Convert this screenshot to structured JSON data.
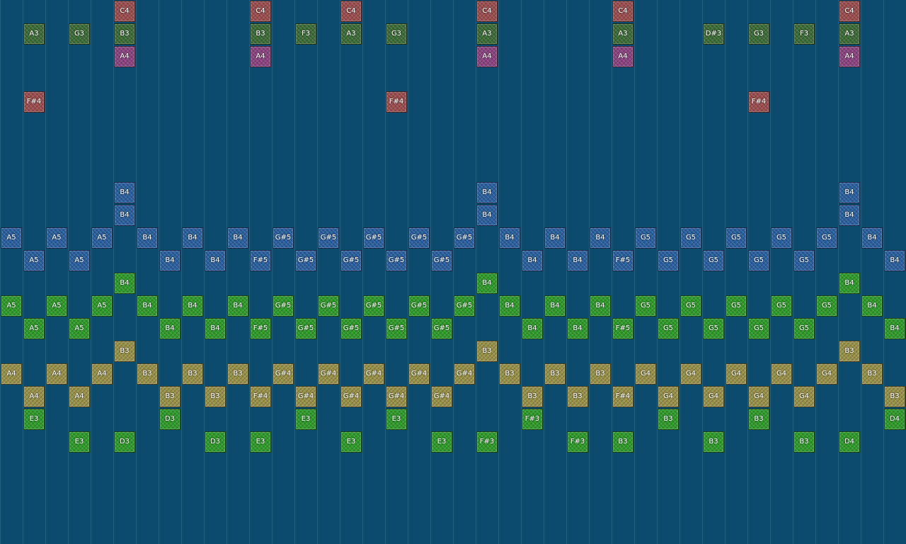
{
  "colors": {
    "red": "#9a4d4e",
    "dgreen": "#3d6b37",
    "purple": "#8a437f",
    "blue": "#2a5f9e",
    "green": "#2f9a2a",
    "olive": "#979048",
    "background": "#0c4a6e"
  },
  "notes": [
    {
      "label": "C4",
      "col": 5,
      "row": 0,
      "color": "red"
    },
    {
      "label": "C4",
      "col": 11,
      "row": 0,
      "color": "red"
    },
    {
      "label": "C4",
      "col": 15,
      "row": 0,
      "color": "red"
    },
    {
      "label": "C4",
      "col": 21,
      "row": 0,
      "color": "red"
    },
    {
      "label": "C4",
      "col": 27,
      "row": 0,
      "color": "red"
    },
    {
      "label": "C4",
      "col": 37,
      "row": 0,
      "color": "red"
    },
    {
      "label": "A3",
      "col": 1,
      "row": 1,
      "color": "dgreen"
    },
    {
      "label": "G3",
      "col": 3,
      "row": 1,
      "color": "dgreen"
    },
    {
      "label": "B3",
      "col": 5,
      "row": 1,
      "color": "dgreen"
    },
    {
      "label": "B3",
      "col": 11,
      "row": 1,
      "color": "dgreen"
    },
    {
      "label": "F3",
      "col": 13,
      "row": 1,
      "color": "dgreen"
    },
    {
      "label": "A3",
      "col": 15,
      "row": 1,
      "color": "dgreen"
    },
    {
      "label": "G3",
      "col": 17,
      "row": 1,
      "color": "dgreen"
    },
    {
      "label": "A3",
      "col": 21,
      "row": 1,
      "color": "dgreen"
    },
    {
      "label": "A3",
      "col": 27,
      "row": 1,
      "color": "dgreen"
    },
    {
      "label": "D#3",
      "col": 31,
      "row": 1,
      "color": "dgreen"
    },
    {
      "label": "G3",
      "col": 33,
      "row": 1,
      "color": "dgreen"
    },
    {
      "label": "F3",
      "col": 35,
      "row": 1,
      "color": "dgreen"
    },
    {
      "label": "A3",
      "col": 37,
      "row": 1,
      "color": "dgreen"
    },
    {
      "label": "A4",
      "col": 5,
      "row": 2,
      "color": "purple"
    },
    {
      "label": "A4",
      "col": 11,
      "row": 2,
      "color": "purple"
    },
    {
      "label": "A4",
      "col": 21,
      "row": 2,
      "color": "purple"
    },
    {
      "label": "A4",
      "col": 27,
      "row": 2,
      "color": "purple"
    },
    {
      "label": "A4",
      "col": 37,
      "row": 2,
      "color": "purple"
    },
    {
      "label": "F#4",
      "col": 1,
      "row": 4,
      "color": "red"
    },
    {
      "label": "F#4",
      "col": 17,
      "row": 4,
      "color": "red"
    },
    {
      "label": "F#4",
      "col": 33,
      "row": 4,
      "color": "red"
    },
    {
      "label": "B4",
      "col": 5,
      "row": 8,
      "color": "blue"
    },
    {
      "label": "B4",
      "col": 21,
      "row": 8,
      "color": "blue"
    },
    {
      "label": "B4",
      "col": 37,
      "row": 8,
      "color": "blue"
    },
    {
      "label": "B4",
      "col": 5,
      "row": 9,
      "color": "blue"
    },
    {
      "label": "B4",
      "col": 21,
      "row": 9,
      "color": "blue"
    },
    {
      "label": "B4",
      "col": 37,
      "row": 9,
      "color": "blue"
    },
    {
      "label": "A5",
      "col": 0,
      "row": 10,
      "color": "blue"
    },
    {
      "label": "A5",
      "col": 2,
      "row": 10,
      "color": "blue"
    },
    {
      "label": "A5",
      "col": 4,
      "row": 10,
      "color": "blue"
    },
    {
      "label": "B4",
      "col": 6,
      "row": 10,
      "color": "blue"
    },
    {
      "label": "B4",
      "col": 8,
      "row": 10,
      "color": "blue"
    },
    {
      "label": "B4",
      "col": 10,
      "row": 10,
      "color": "blue"
    },
    {
      "label": "G#5",
      "col": 12,
      "row": 10,
      "color": "blue"
    },
    {
      "label": "G#5",
      "col": 14,
      "row": 10,
      "color": "blue"
    },
    {
      "label": "G#5",
      "col": 16,
      "row": 10,
      "color": "blue"
    },
    {
      "label": "G#5",
      "col": 18,
      "row": 10,
      "color": "blue"
    },
    {
      "label": "G#5",
      "col": 20,
      "row": 10,
      "color": "blue"
    },
    {
      "label": "B4",
      "col": 22,
      "row": 10,
      "color": "blue"
    },
    {
      "label": "B4",
      "col": 24,
      "row": 10,
      "color": "blue"
    },
    {
      "label": "B4",
      "col": 26,
      "row": 10,
      "color": "blue"
    },
    {
      "label": "G5",
      "col": 28,
      "row": 10,
      "color": "blue"
    },
    {
      "label": "G5",
      "col": 30,
      "row": 10,
      "color": "blue"
    },
    {
      "label": "G5",
      "col": 32,
      "row": 10,
      "color": "blue"
    },
    {
      "label": "G5",
      "col": 34,
      "row": 10,
      "color": "blue"
    },
    {
      "label": "G5",
      "col": 36,
      "row": 10,
      "color": "blue"
    },
    {
      "label": "B4",
      "col": 38,
      "row": 10,
      "color": "blue"
    },
    {
      "label": "A5",
      "col": 1,
      "row": 11,
      "color": "blue"
    },
    {
      "label": "A5",
      "col": 3,
      "row": 11,
      "color": "blue"
    },
    {
      "label": "B4",
      "col": 7,
      "row": 11,
      "color": "blue"
    },
    {
      "label": "B4",
      "col": 9,
      "row": 11,
      "color": "blue"
    },
    {
      "label": "F#5",
      "col": 11,
      "row": 11,
      "color": "blue"
    },
    {
      "label": "G#5",
      "col": 13,
      "row": 11,
      "color": "blue"
    },
    {
      "label": "G#5",
      "col": 15,
      "row": 11,
      "color": "blue"
    },
    {
      "label": "G#5",
      "col": 17,
      "row": 11,
      "color": "blue"
    },
    {
      "label": "G#5",
      "col": 19,
      "row": 11,
      "color": "blue"
    },
    {
      "label": "B4",
      "col": 23,
      "row": 11,
      "color": "blue"
    },
    {
      "label": "B4",
      "col": 25,
      "row": 11,
      "color": "blue"
    },
    {
      "label": "F#5",
      "col": 27,
      "row": 11,
      "color": "blue"
    },
    {
      "label": "G5",
      "col": 29,
      "row": 11,
      "color": "blue"
    },
    {
      "label": "G5",
      "col": 31,
      "row": 11,
      "color": "blue"
    },
    {
      "label": "G5",
      "col": 33,
      "row": 11,
      "color": "blue"
    },
    {
      "label": "G5",
      "col": 35,
      "row": 11,
      "color": "blue"
    },
    {
      "label": "B4",
      "col": 39,
      "row": 11,
      "color": "blue"
    },
    {
      "label": "B4",
      "col": 5,
      "row": 12,
      "color": "green"
    },
    {
      "label": "B4",
      "col": 21,
      "row": 12,
      "color": "green"
    },
    {
      "label": "B4",
      "col": 37,
      "row": 12,
      "color": "green"
    },
    {
      "label": "A5",
      "col": 0,
      "row": 13,
      "color": "green"
    },
    {
      "label": "A5",
      "col": 2,
      "row": 13,
      "color": "green"
    },
    {
      "label": "A5",
      "col": 4,
      "row": 13,
      "color": "green"
    },
    {
      "label": "B4",
      "col": 6,
      "row": 13,
      "color": "green"
    },
    {
      "label": "B4",
      "col": 8,
      "row": 13,
      "color": "green"
    },
    {
      "label": "B4",
      "col": 10,
      "row": 13,
      "color": "green"
    },
    {
      "label": "G#5",
      "col": 12,
      "row": 13,
      "color": "green"
    },
    {
      "label": "G#5",
      "col": 14,
      "row": 13,
      "color": "green"
    },
    {
      "label": "G#5",
      "col": 16,
      "row": 13,
      "color": "green"
    },
    {
      "label": "G#5",
      "col": 18,
      "row": 13,
      "color": "green"
    },
    {
      "label": "G#5",
      "col": 20,
      "row": 13,
      "color": "green"
    },
    {
      "label": "B4",
      "col": 22,
      "row": 13,
      "color": "green"
    },
    {
      "label": "B4",
      "col": 24,
      "row": 13,
      "color": "green"
    },
    {
      "label": "B4",
      "col": 26,
      "row": 13,
      "color": "green"
    },
    {
      "label": "G5",
      "col": 28,
      "row": 13,
      "color": "green"
    },
    {
      "label": "G5",
      "col": 30,
      "row": 13,
      "color": "green"
    },
    {
      "label": "G5",
      "col": 32,
      "row": 13,
      "color": "green"
    },
    {
      "label": "G5",
      "col": 34,
      "row": 13,
      "color": "green"
    },
    {
      "label": "G5",
      "col": 36,
      "row": 13,
      "color": "green"
    },
    {
      "label": "B4",
      "col": 38,
      "row": 13,
      "color": "green"
    },
    {
      "label": "A5",
      "col": 1,
      "row": 14,
      "color": "green"
    },
    {
      "label": "A5",
      "col": 3,
      "row": 14,
      "color": "green"
    },
    {
      "label": "B4",
      "col": 7,
      "row": 14,
      "color": "green"
    },
    {
      "label": "B4",
      "col": 9,
      "row": 14,
      "color": "green"
    },
    {
      "label": "F#5",
      "col": 11,
      "row": 14,
      "color": "green"
    },
    {
      "label": "G#5",
      "col": 13,
      "row": 14,
      "color": "green"
    },
    {
      "label": "G#5",
      "col": 15,
      "row": 14,
      "color": "green"
    },
    {
      "label": "G#5",
      "col": 17,
      "row": 14,
      "color": "green"
    },
    {
      "label": "G#5",
      "col": 19,
      "row": 14,
      "color": "green"
    },
    {
      "label": "B4",
      "col": 23,
      "row": 14,
      "color": "green"
    },
    {
      "label": "B4",
      "col": 25,
      "row": 14,
      "color": "green"
    },
    {
      "label": "F#5",
      "col": 27,
      "row": 14,
      "color": "green"
    },
    {
      "label": "G5",
      "col": 29,
      "row": 14,
      "color": "green"
    },
    {
      "label": "G5",
      "col": 31,
      "row": 14,
      "color": "green"
    },
    {
      "label": "G5",
      "col": 33,
      "row": 14,
      "color": "green"
    },
    {
      "label": "G5",
      "col": 35,
      "row": 14,
      "color": "green"
    },
    {
      "label": "B4",
      "col": 39,
      "row": 14,
      "color": "green"
    },
    {
      "label": "B3",
      "col": 5,
      "row": 15,
      "color": "olive"
    },
    {
      "label": "B3",
      "col": 21,
      "row": 15,
      "color": "olive"
    },
    {
      "label": "B3",
      "col": 37,
      "row": 15,
      "color": "olive"
    },
    {
      "label": "A4",
      "col": 0,
      "row": 16,
      "color": "olive"
    },
    {
      "label": "A4",
      "col": 2,
      "row": 16,
      "color": "olive"
    },
    {
      "label": "A4",
      "col": 4,
      "row": 16,
      "color": "olive"
    },
    {
      "label": "B3",
      "col": 6,
      "row": 16,
      "color": "olive"
    },
    {
      "label": "B3",
      "col": 8,
      "row": 16,
      "color": "olive"
    },
    {
      "label": "B3",
      "col": 10,
      "row": 16,
      "color": "olive"
    },
    {
      "label": "G#4",
      "col": 12,
      "row": 16,
      "color": "olive"
    },
    {
      "label": "G#4",
      "col": 14,
      "row": 16,
      "color": "olive"
    },
    {
      "label": "G#4",
      "col": 16,
      "row": 16,
      "color": "olive"
    },
    {
      "label": "G#4",
      "col": 18,
      "row": 16,
      "color": "olive"
    },
    {
      "label": "G#4",
      "col": 20,
      "row": 16,
      "color": "olive"
    },
    {
      "label": "B3",
      "col": 22,
      "row": 16,
      "color": "olive"
    },
    {
      "label": "B3",
      "col": 24,
      "row": 16,
      "color": "olive"
    },
    {
      "label": "B3",
      "col": 26,
      "row": 16,
      "color": "olive"
    },
    {
      "label": "G4",
      "col": 28,
      "row": 16,
      "color": "olive"
    },
    {
      "label": "G4",
      "col": 30,
      "row": 16,
      "color": "olive"
    },
    {
      "label": "G4",
      "col": 32,
      "row": 16,
      "color": "olive"
    },
    {
      "label": "G4",
      "col": 34,
      "row": 16,
      "color": "olive"
    },
    {
      "label": "G4",
      "col": 36,
      "row": 16,
      "color": "olive"
    },
    {
      "label": "B3",
      "col": 38,
      "row": 16,
      "color": "olive"
    },
    {
      "label": "A4",
      "col": 1,
      "row": 17,
      "color": "olive"
    },
    {
      "label": "A4",
      "col": 3,
      "row": 17,
      "color": "olive"
    },
    {
      "label": "B3",
      "col": 7,
      "row": 17,
      "color": "olive"
    },
    {
      "label": "B3",
      "col": 9,
      "row": 17,
      "color": "olive"
    },
    {
      "label": "F#4",
      "col": 11,
      "row": 17,
      "color": "olive"
    },
    {
      "label": "G#4",
      "col": 13,
      "row": 17,
      "color": "olive"
    },
    {
      "label": "G#4",
      "col": 15,
      "row": 17,
      "color": "olive"
    },
    {
      "label": "G#4",
      "col": 17,
      "row": 17,
      "color": "olive"
    },
    {
      "label": "G#4",
      "col": 19,
      "row": 17,
      "color": "olive"
    },
    {
      "label": "B3",
      "col": 23,
      "row": 17,
      "color": "olive"
    },
    {
      "label": "B3",
      "col": 25,
      "row": 17,
      "color": "olive"
    },
    {
      "label": "F#4",
      "col": 27,
      "row": 17,
      "color": "olive"
    },
    {
      "label": "G4",
      "col": 29,
      "row": 17,
      "color": "olive"
    },
    {
      "label": "G4",
      "col": 31,
      "row": 17,
      "color": "olive"
    },
    {
      "label": "G4",
      "col": 33,
      "row": 17,
      "color": "olive"
    },
    {
      "label": "G4",
      "col": 35,
      "row": 17,
      "color": "olive"
    },
    {
      "label": "B3",
      "col": 39,
      "row": 17,
      "color": "olive"
    },
    {
      "label": "E3",
      "col": 1,
      "row": 18,
      "color": "green"
    },
    {
      "label": "D3",
      "col": 7,
      "row": 18,
      "color": "green"
    },
    {
      "label": "E3",
      "col": 13,
      "row": 18,
      "color": "green"
    },
    {
      "label": "E3",
      "col": 17,
      "row": 18,
      "color": "green"
    },
    {
      "label": "F#3",
      "col": 23,
      "row": 18,
      "color": "green"
    },
    {
      "label": "B3",
      "col": 29,
      "row": 18,
      "color": "green"
    },
    {
      "label": "B3",
      "col": 33,
      "row": 18,
      "color": "green"
    },
    {
      "label": "D4",
      "col": 39,
      "row": 18,
      "color": "green"
    },
    {
      "label": "E3",
      "col": 3,
      "row": 19,
      "color": "green"
    },
    {
      "label": "D3",
      "col": 5,
      "row": 19,
      "color": "green"
    },
    {
      "label": "D3",
      "col": 9,
      "row": 19,
      "color": "green"
    },
    {
      "label": "E3",
      "col": 11,
      "row": 19,
      "color": "green"
    },
    {
      "label": "E3",
      "col": 15,
      "row": 19,
      "color": "green"
    },
    {
      "label": "E3",
      "col": 19,
      "row": 19,
      "color": "green"
    },
    {
      "label": "F#3",
      "col": 21,
      "row": 19,
      "color": "green"
    },
    {
      "label": "F#3",
      "col": 25,
      "row": 19,
      "color": "green"
    },
    {
      "label": "B3",
      "col": 27,
      "row": 19,
      "color": "green"
    },
    {
      "label": "B3",
      "col": 31,
      "row": 19,
      "color": "green"
    },
    {
      "label": "B3",
      "col": 35,
      "row": 19,
      "color": "green"
    },
    {
      "label": "D4",
      "col": 37,
      "row": 19,
      "color": "green"
    }
  ]
}
